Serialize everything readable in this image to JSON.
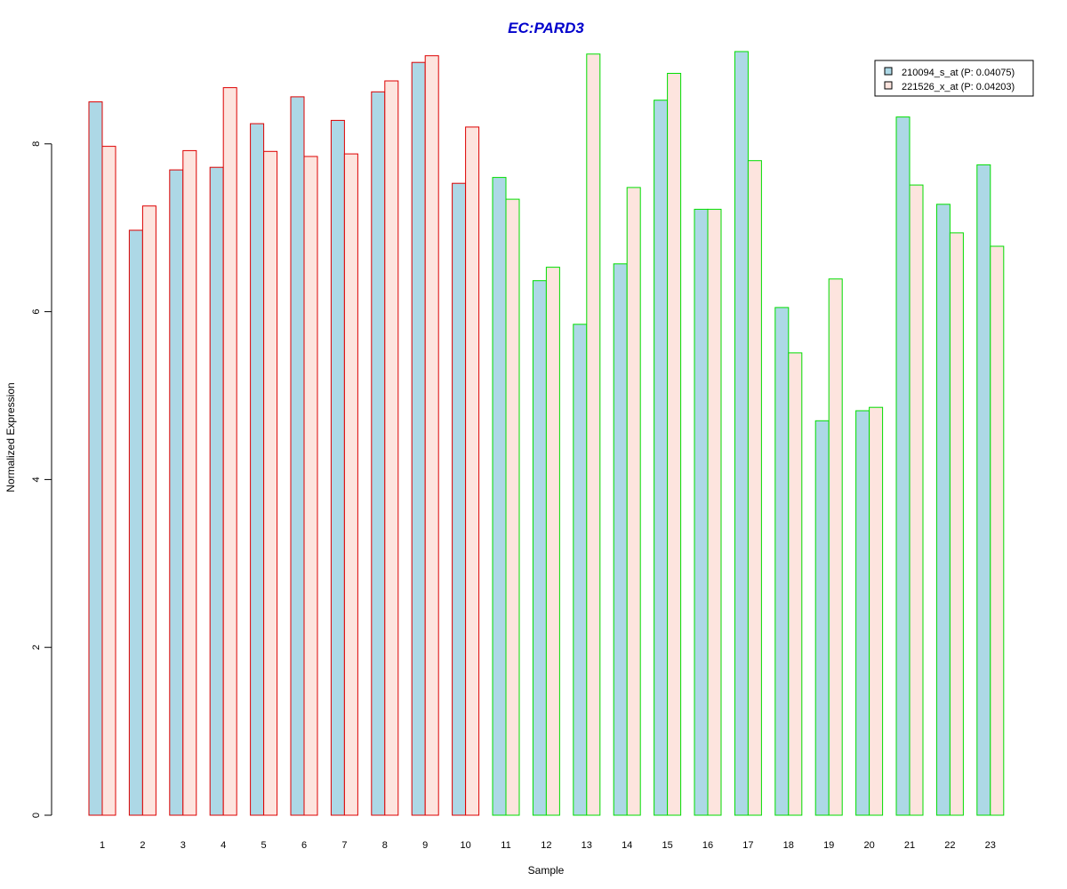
{
  "chart_data": {
    "type": "bar",
    "title": "EC:PARD3",
    "xlabel": "Sample",
    "ylabel": "Normalized Expression",
    "ylim": [
      0,
      9.2
    ],
    "yticks": [
      "0",
      "2",
      "4",
      "6",
      "8"
    ],
    "grid": false,
    "legend_position": "top-right",
    "categories": [
      "1",
      "2",
      "3",
      "4",
      "5",
      "6",
      "7",
      "8",
      "9",
      "10",
      "11",
      "12",
      "13",
      "14",
      "15",
      "16",
      "17",
      "18",
      "19",
      "20",
      "21",
      "22",
      "23"
    ],
    "groups": [
      {
        "samples": [
          "1",
          "2",
          "3",
          "4",
          "5",
          "6",
          "7",
          "8",
          "9",
          "10"
        ],
        "border_color": "#dd0000"
      },
      {
        "samples": [
          "11",
          "12",
          "13",
          "14",
          "15",
          "16",
          "17",
          "18",
          "19",
          "20",
          "21",
          "22",
          "23"
        ],
        "border_color": "#00dd00"
      }
    ],
    "series": [
      {
        "name": "210094_s_at (P: 0.04075)",
        "fill": "#add8e6",
        "values": [
          8.5,
          6.97,
          7.69,
          7.72,
          8.24,
          8.56,
          8.28,
          8.62,
          8.97,
          7.53,
          7.6,
          6.37,
          5.85,
          6.57,
          8.52,
          7.22,
          9.1,
          6.05,
          4.7,
          4.82,
          8.32,
          7.28,
          7.75
        ]
      },
      {
        "name": "221526_x_at (P: 0.04203)",
        "fill": "#fde4de",
        "values": [
          7.97,
          7.26,
          7.92,
          8.67,
          7.91,
          7.85,
          7.88,
          8.75,
          9.05,
          8.2,
          7.34,
          6.53,
          9.07,
          7.48,
          8.84,
          7.22,
          7.8,
          5.51,
          6.39,
          4.86,
          7.51,
          6.94,
          6.78
        ]
      }
    ]
  }
}
